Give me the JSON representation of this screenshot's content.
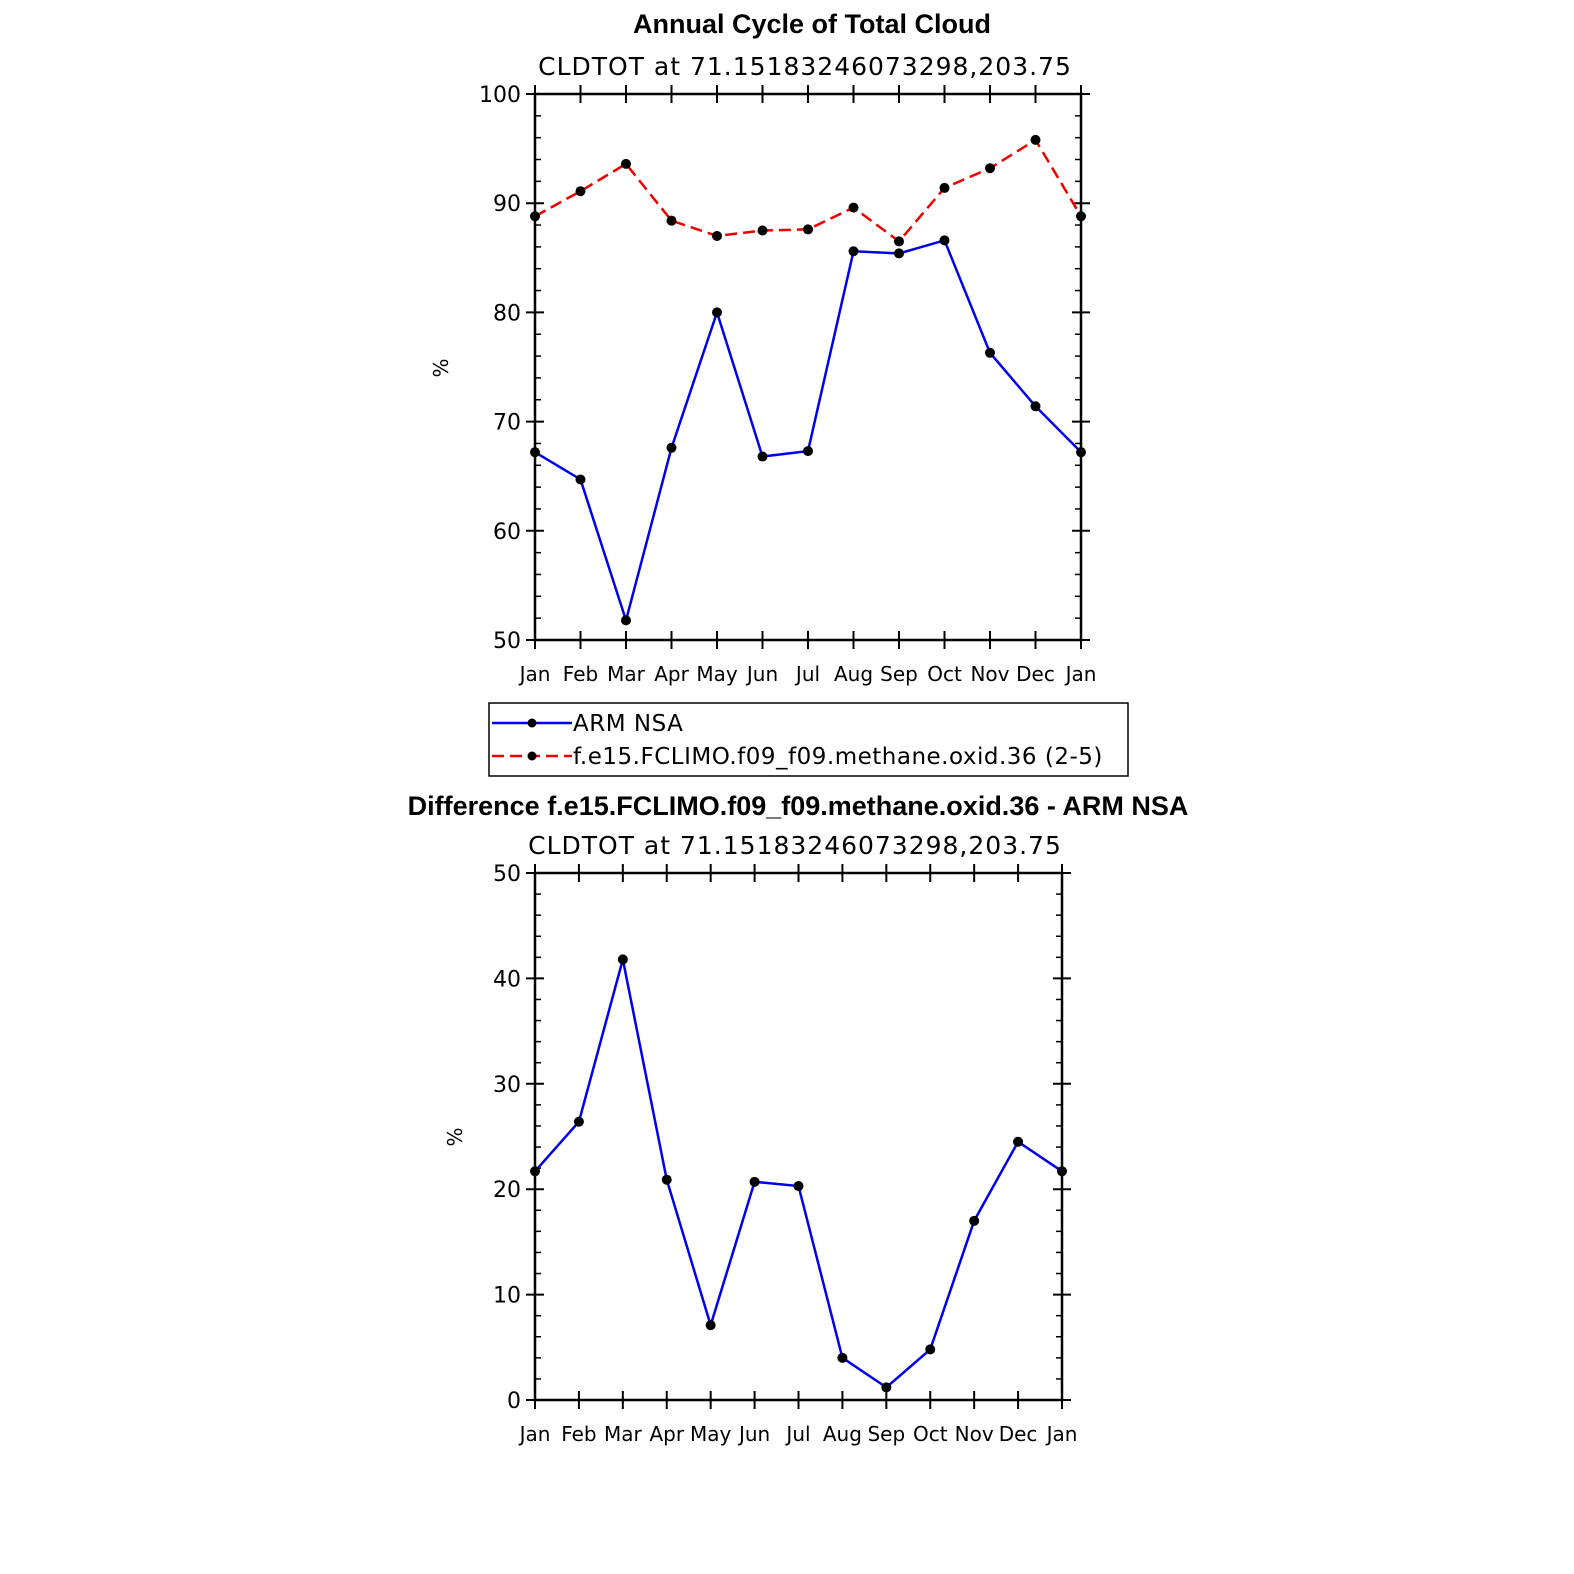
{
  "colors": {
    "obs": "#0000ee",
    "model": "#ee0000",
    "marker": "#000000",
    "axis": "#000000"
  },
  "chart_data": [
    {
      "type": "line",
      "title": "Annual Cycle of Total Cloud",
      "subtitle": "CLDTOT at 71.15183246073298,203.75",
      "ylabel": "%",
      "ylim": [
        50,
        100
      ],
      "yticks": [
        50,
        60,
        70,
        80,
        90,
        100
      ],
      "categories": [
        "Jan",
        "Feb",
        "Mar",
        "Apr",
        "May",
        "Jun",
        "Jul",
        "Aug",
        "Sep",
        "Oct",
        "Nov",
        "Dec",
        "Jan"
      ],
      "series": [
        {
          "name": "ARM NSA",
          "style": "solid",
          "color": "#0000ee",
          "values": [
            67.2,
            64.7,
            51.8,
            67.6,
            80.0,
            66.8,
            67.3,
            85.6,
            85.4,
            86.6,
            76.3,
            71.4,
            67.2
          ]
        },
        {
          "name": "f.e15.FCLIMO.f09_f09.methane.oxid.36 (2-5)",
          "style": "dashed",
          "color": "#ee0000",
          "values": [
            88.8,
            91.1,
            93.6,
            88.4,
            87.0,
            87.5,
            87.6,
            89.6,
            86.5,
            91.4,
            93.2,
            95.8,
            88.8
          ]
        }
      ],
      "legend": {
        "placement": "below"
      }
    },
    {
      "type": "line",
      "title": "Difference f.e15.FCLIMO.f09_f09.methane.oxid.36 - ARM NSA",
      "subtitle": "CLDTOT at 71.15183246073298,203.75",
      "ylabel": "%",
      "ylim": [
        0,
        50
      ],
      "yticks": [
        0,
        10,
        20,
        30,
        40,
        50
      ],
      "categories": [
        "Jan",
        "Feb",
        "Mar",
        "Apr",
        "May",
        "Jun",
        "Jul",
        "Aug",
        "Sep",
        "Oct",
        "Nov",
        "Dec",
        "Jan"
      ],
      "series": [
        {
          "style": "solid",
          "color": "#0000ee",
          "values": [
            21.7,
            26.4,
            41.8,
            20.9,
            7.1,
            20.7,
            20.3,
            4.0,
            1.2,
            4.8,
            17.0,
            24.5,
            21.7
          ]
        }
      ]
    }
  ]
}
